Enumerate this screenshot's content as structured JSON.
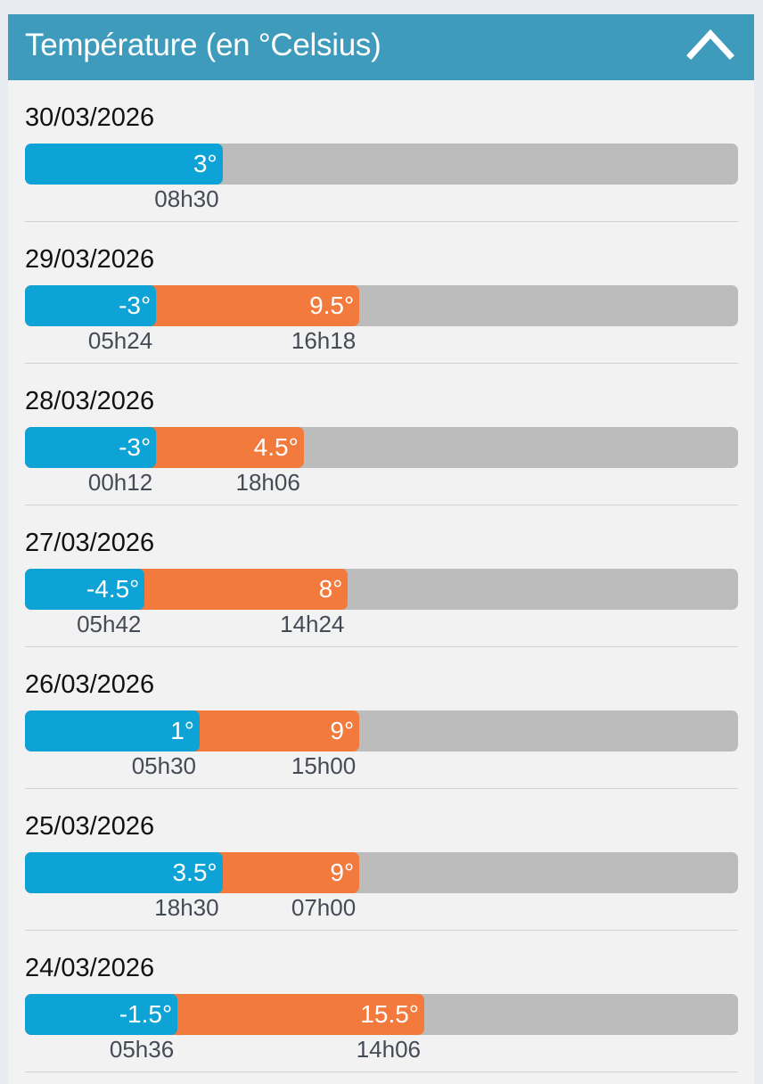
{
  "header": {
    "title": "Température (en °Celsius)",
    "collapse_icon": "chevron-up-icon"
  },
  "colors": {
    "header": "#3e9bbb",
    "min": "#0ea3d6",
    "max": "#f27a3d",
    "track": "#bcbcbc"
  },
  "days": [
    {
      "date": "30/03/2026",
      "min": {
        "label": "3°",
        "time": "08h30",
        "fill": 0.277
      },
      "max": null
    },
    {
      "date": "29/03/2026",
      "min": {
        "label": "-3°",
        "time": "05h24",
        "fill": 0.184
      },
      "max": {
        "label": "9.5°",
        "time": "16h18",
        "fill": 0.469
      }
    },
    {
      "date": "28/03/2026",
      "min": {
        "label": "-3°",
        "time": "00h12",
        "fill": 0.184
      },
      "max": {
        "label": "4.5°",
        "time": "18h06",
        "fill": 0.391
      }
    },
    {
      "date": "27/03/2026",
      "min": {
        "label": "-4.5°",
        "time": "05h42",
        "fill": 0.168
      },
      "max": {
        "label": "8°",
        "time": "14h24",
        "fill": 0.453
      }
    },
    {
      "date": "26/03/2026",
      "min": {
        "label": "1°",
        "time": "05h30",
        "fill": 0.245
      },
      "max": {
        "label": "9°",
        "time": "15h00",
        "fill": 0.469
      }
    },
    {
      "date": "25/03/2026",
      "min": {
        "label": "3.5°",
        "time": "18h30",
        "fill": 0.277
      },
      "max": {
        "label": "9°",
        "time": "07h00",
        "fill": 0.469
      }
    },
    {
      "date": "24/03/2026",
      "min": {
        "label": "-1.5°",
        "time": "05h36",
        "fill": 0.214
      },
      "max": {
        "label": "15.5°",
        "time": "14h06",
        "fill": 0.56
      }
    }
  ]
}
